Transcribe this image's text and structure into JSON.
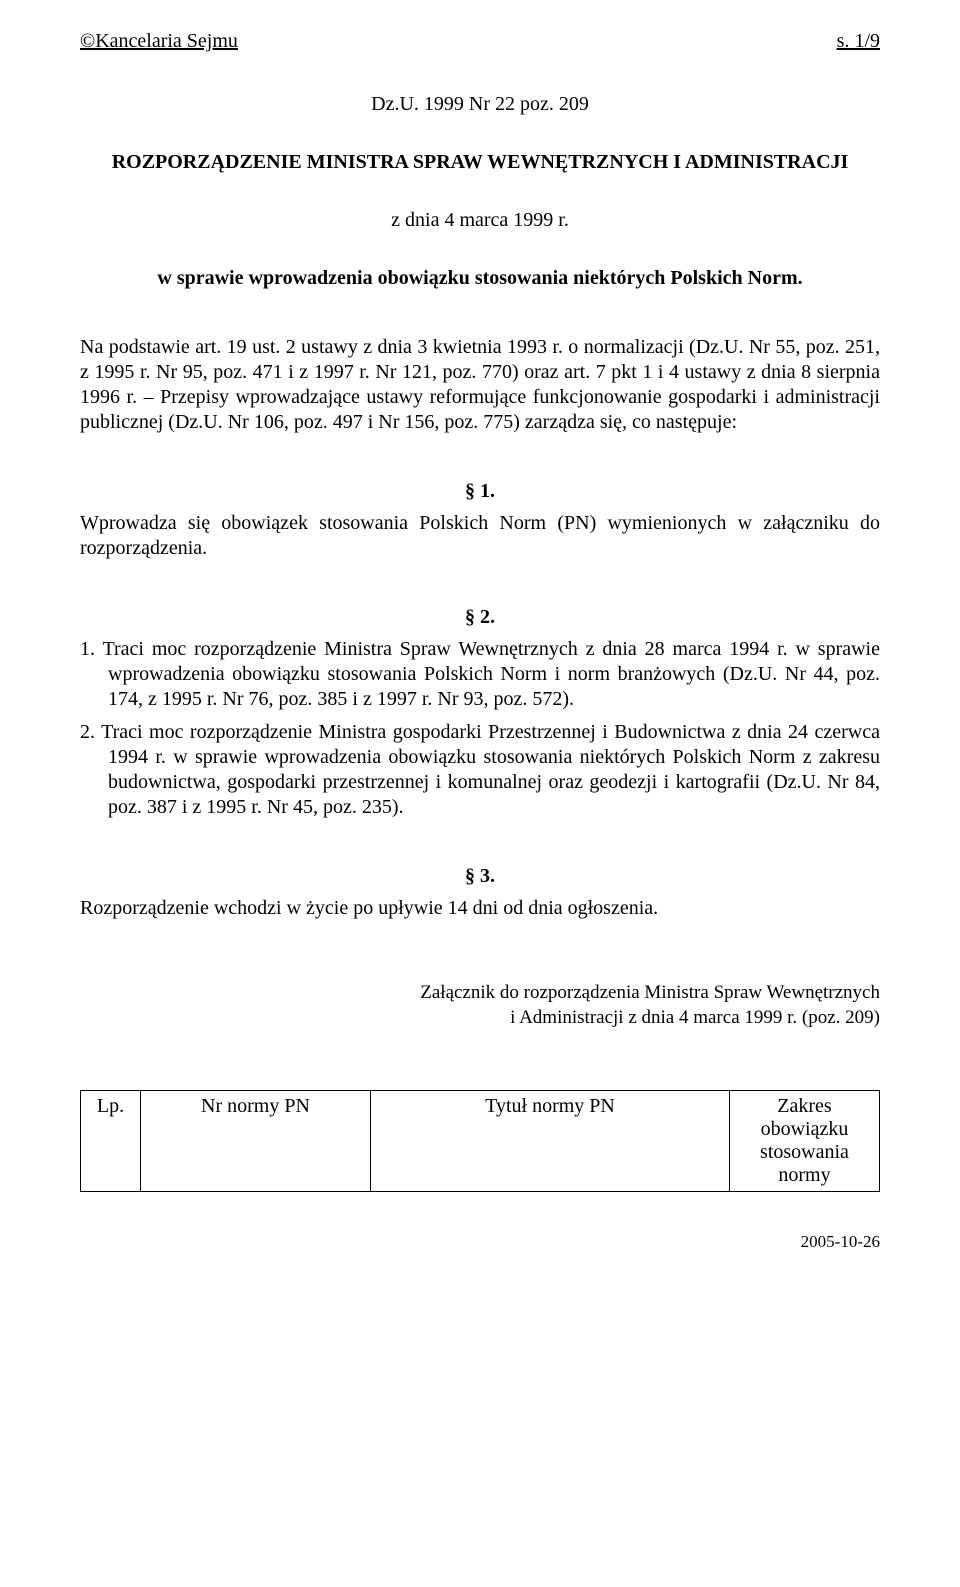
{
  "header": {
    "left": "©Kancelaria Sejmu",
    "right": "s. 1/9"
  },
  "docRef": "Dz.U. 1999 Nr 22 poz. 209",
  "docTitle": "ROZPORZĄDZENIE MINISTRA SPRAW WEWNĘTRZNYCH I ADMINISTRACJI",
  "docDate": "z dnia 4 marca 1999 r.",
  "docSubject": "w sprawie wprowadzenia obowiązku stosowania niektórych Polskich Norm.",
  "preamble": "Na podstawie art. 19 ust. 2 ustawy z dnia 3 kwietnia 1993 r. o normalizacji (Dz.U. Nr 55, poz. 251, z 1995 r. Nr 95, poz. 471 i z 1997 r. Nr 121, poz. 770) oraz art. 7 pkt 1 i 4 ustawy z dnia 8 sierpnia 1996 r. – Przepisy wprowadzające ustawy reformujące funkcjonowanie gospodarki i administracji publicznej (Dz.U. Nr 106, poz. 497 i Nr 156, poz. 775) zarządza się, co następuje:",
  "s1": {
    "num": "§ 1.",
    "body": "Wprowadza się obowiązek stosowania Polskich Norm (PN) wymienionych w załączniku do rozporządzenia."
  },
  "s2": {
    "num": "§ 2.",
    "items": [
      "1. Traci moc rozporządzenie Ministra Spraw Wewnętrznych z dnia 28 marca 1994 r. w sprawie wprowadzenia obowiązku stosowania Polskich Norm i norm branżowych (Dz.U. Nr 44, poz. 174, z 1995 r. Nr 76, poz. 385 i z 1997 r. Nr 93, poz. 572).",
      "2. Traci moc rozporządzenie Ministra gospodarki Przestrzennej i Budownictwa z dnia 24 czerwca 1994 r. w sprawie wprowadzenia obowiązku stosowania niektórych Polskich Norm z zakresu budownictwa, gospodarki przestrzennej i komunalnej oraz geodezji i kartografii (Dz.U. Nr 84, poz. 387 i z 1995 r. Nr 45, poz. 235)."
    ]
  },
  "s3": {
    "num": "§ 3.",
    "body": "Rozporządzenie wchodzi w życie po upływie 14 dni od dnia ogłoszenia."
  },
  "attachment": {
    "line1": "Załącznik do rozporządzenia Ministra Spraw Wewnętrznych",
    "line2": "i Administracji z dnia 4 marca 1999 r. (poz. 209)"
  },
  "table": {
    "headers": {
      "lp": "Lp.",
      "nr": "Nr normy PN",
      "tytul": "Tytuł normy PN",
      "zakres": "Zakres obowiązku stosowania normy"
    }
  },
  "footerDate": "2005-10-26"
}
